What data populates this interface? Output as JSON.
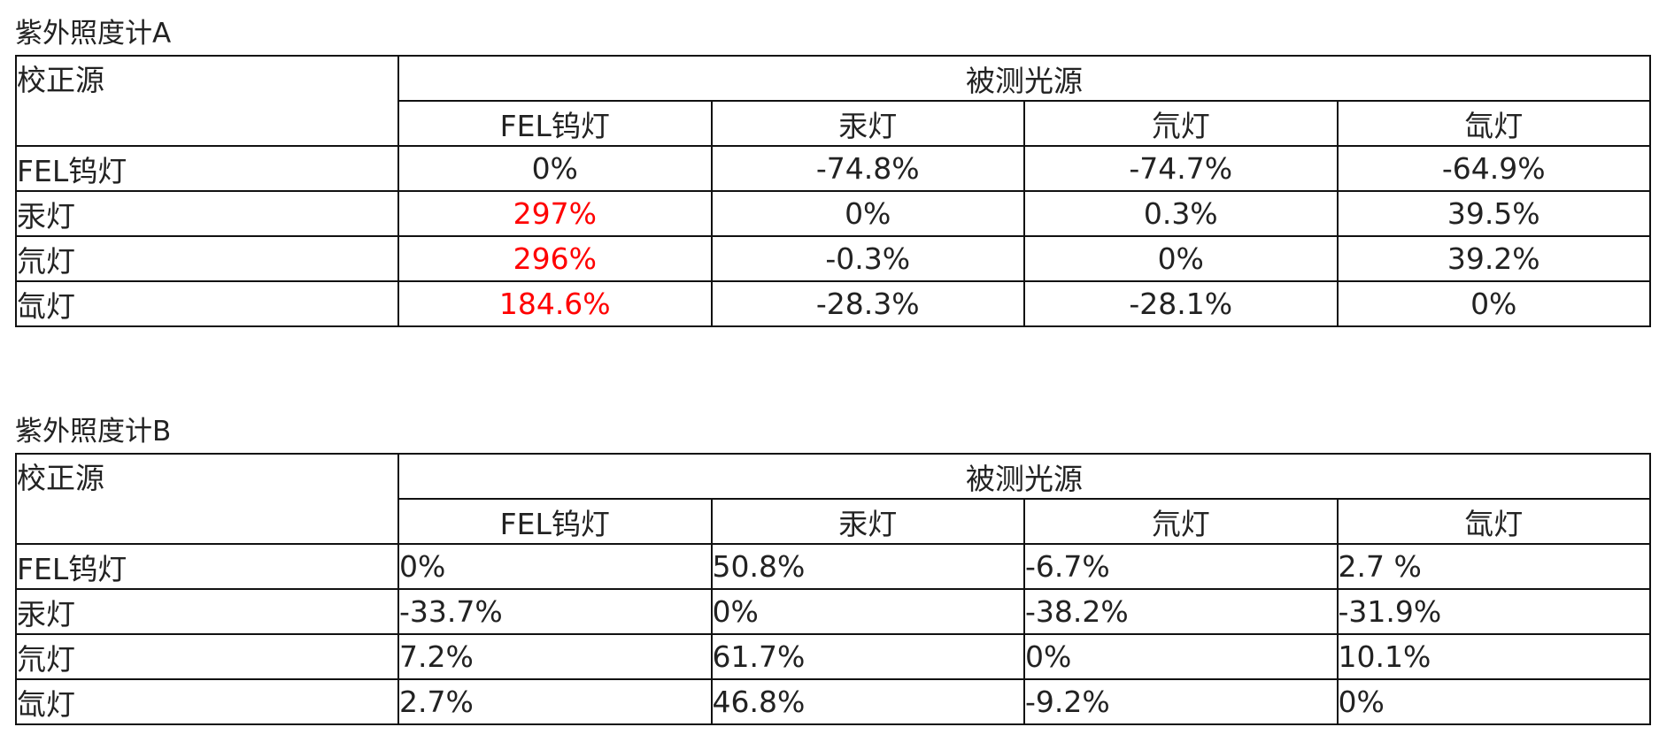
{
  "tables": [
    {
      "title": "紫外照度计A",
      "corner_label": "校正源",
      "group_label": "被测光源",
      "columns": [
        "FEL钨灯",
        "汞灯",
        "氘灯",
        "氙灯"
      ],
      "highlight_color": "#ff0000",
      "rows": [
        {
          "label": "FEL钨灯",
          "values": [
            "0%",
            "-74.8%",
            "-74.7%",
            "-64.9%"
          ],
          "highlight": [
            false,
            false,
            false,
            false
          ]
        },
        {
          "label": "汞灯",
          "values": [
            "297%",
            "0%",
            "0.3%",
            "39.5%"
          ],
          "highlight": [
            true,
            false,
            false,
            false
          ]
        },
        {
          "label": "氘灯",
          "values": [
            "296%",
            "-0.3%",
            "0%",
            "39.2%"
          ],
          "highlight": [
            true,
            false,
            false,
            false
          ]
        },
        {
          "label": "氙灯",
          "values": [
            "184.6%",
            "-28.3%",
            "-28.1%",
            "0%"
          ],
          "highlight": [
            true,
            false,
            false,
            false
          ]
        }
      ]
    },
    {
      "title": "紫外照度计B",
      "corner_label": "校正源",
      "group_label": "被测光源",
      "columns": [
        "FEL钨灯",
        "汞灯",
        "氘灯",
        "氙灯"
      ],
      "rows": [
        {
          "label": "FEL钨灯",
          "values": [
            "0%",
            "50.8%",
            "-6.7%",
            "2.7 %"
          ]
        },
        {
          "label": "汞灯",
          "values": [
            "-33.7%",
            "0%",
            "-38.2%",
            "-31.9%"
          ]
        },
        {
          "label": "氘灯",
          "values": [
            "7.2%",
            "61.7%",
            "0%",
            "10.1%"
          ]
        },
        {
          "label": "氙灯",
          "values": [
            "2.7%",
            "46.8%",
            "-9.2%",
            "0%"
          ]
        }
      ]
    }
  ]
}
